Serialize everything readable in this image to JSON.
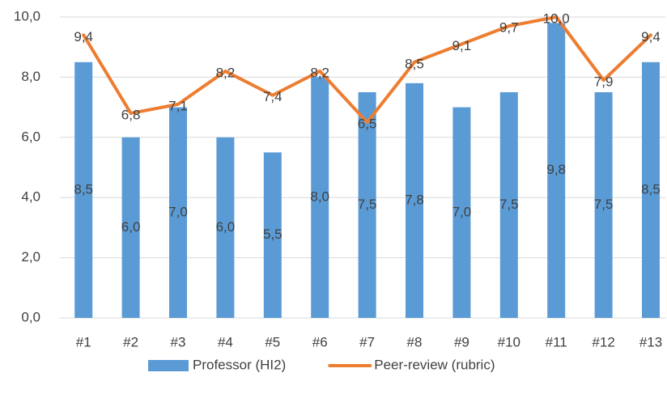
{
  "chart_data": {
    "type": "combo",
    "categories": [
      "#1",
      "#2",
      "#3",
      "#4",
      "#5",
      "#6",
      "#7",
      "#8",
      "#9",
      "#10",
      "#11",
      "#12",
      "#13"
    ],
    "series": [
      {
        "name": "Professor (HI2)",
        "type": "bar",
        "color": "#5b9bd5",
        "values": [
          8.5,
          6.0,
          7.0,
          6.0,
          5.5,
          8.0,
          7.5,
          7.8,
          7.0,
          7.5,
          9.8,
          7.5,
          8.5
        ],
        "value_labels": [
          "8,5",
          "6,0",
          "7,0",
          "6,0",
          "5,5",
          "8,0",
          "7,5",
          "7,8",
          "7,0",
          "7,5",
          "9,8",
          "7,5",
          "8,5"
        ]
      },
      {
        "name": "Peer-review (rubric)",
        "type": "line",
        "color": "#ed7d31",
        "values": [
          9.4,
          6.8,
          7.1,
          8.2,
          7.4,
          8.2,
          6.5,
          8.5,
          9.1,
          9.7,
          10.0,
          7.9,
          9.4
        ],
        "value_labels": [
          "9,4",
          "6,8",
          "7,1",
          "8,2",
          "7,4",
          "8,2",
          "6,5",
          "8,5",
          "9,1",
          "9,7",
          "10,0",
          "7,9",
          "9,4"
        ]
      }
    ],
    "ylim": [
      0,
      10
    ],
    "yticks": [
      {
        "value": 0,
        "label": "0,0"
      },
      {
        "value": 2,
        "label": "2,0"
      },
      {
        "value": 4,
        "label": "4,0"
      },
      {
        "value": 6,
        "label": "6,0"
      },
      {
        "value": 8,
        "label": "8,0"
      },
      {
        "value": 10,
        "label": "10,0"
      }
    ],
    "grid": true,
    "legend": "bottom"
  }
}
